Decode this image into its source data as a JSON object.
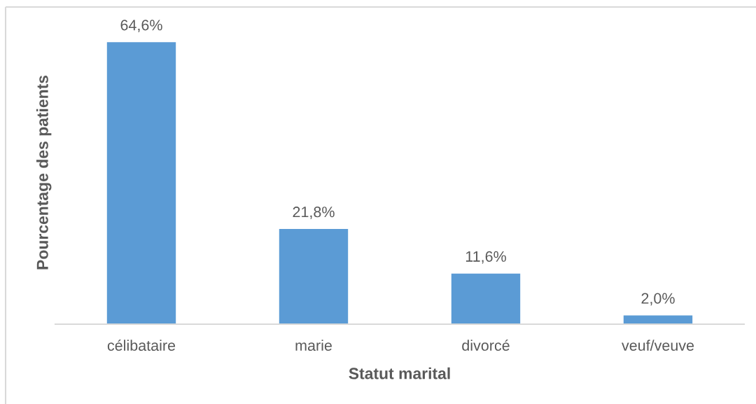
{
  "chart_data": {
    "type": "bar",
    "xlabel": "Statut marital",
    "ylabel": "Pourcentage des patients",
    "categories": [
      "célibataire",
      "marie",
      "divorcé",
      "veuf/veuve"
    ],
    "values": [
      64.6,
      21.8,
      11.6,
      2.0
    ],
    "color": "#5b9bd5",
    "value_labels": [
      "64,6%",
      "21,8%",
      "11,6%",
      "2,0%"
    ],
    "tick_labels": "x"
  }
}
